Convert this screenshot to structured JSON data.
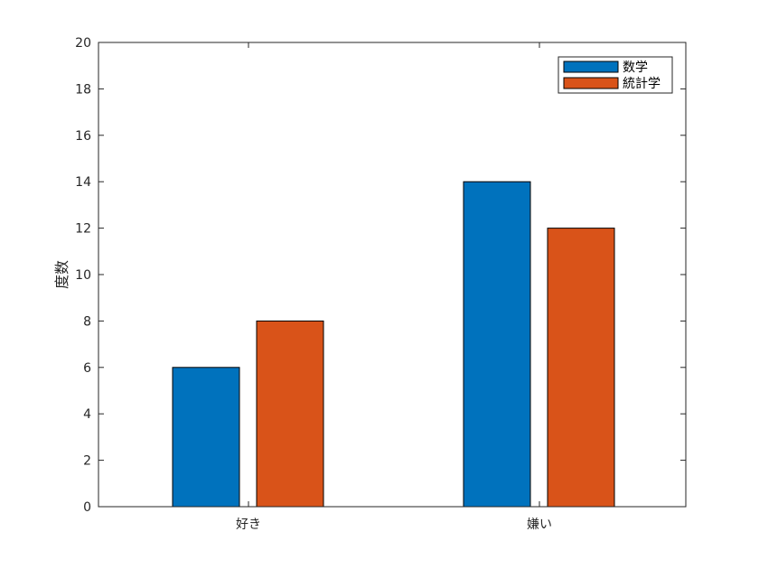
{
  "chart_data": {
    "type": "bar",
    "categories": [
      "好き",
      "嫌い"
    ],
    "series": [
      {
        "name": "数学",
        "values": [
          6,
          14
        ],
        "color": "#0072BD"
      },
      {
        "name": "統計学",
        "values": [
          8,
          12
        ],
        "color": "#D95319"
      }
    ],
    "title": "",
    "xlabel": "",
    "ylabel": "度数",
    "ylim": [
      0,
      20
    ],
    "yticks": [
      "0",
      "2",
      "4",
      "6",
      "8",
      "10",
      "12",
      "14",
      "16",
      "18",
      "20"
    ],
    "grid": false,
    "legend_position": "top-right"
  }
}
